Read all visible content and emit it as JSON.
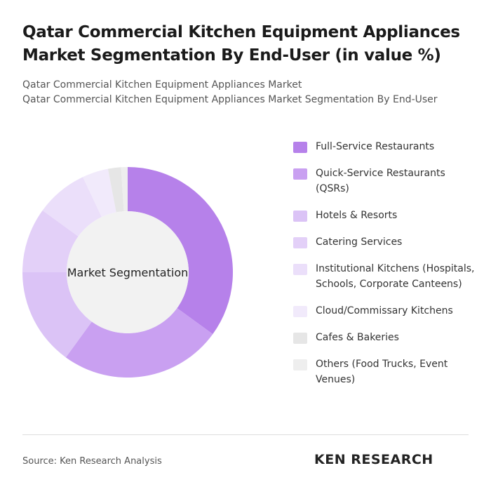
{
  "chart_data": {
    "type": "donut",
    "title": "Qatar Commercial Kitchen Equipment Appliances Market Segmentation By End-User (in value %)",
    "subtitle": [
      "Qatar Commercial Kitchen Equipment Appliances Market",
      "Qatar Commercial Kitchen Equipment Appliances Market Segmentation By End-User"
    ],
    "center_label": "Market Segmentation",
    "categories": [
      "Full-Service Restaurants",
      "Quick-Service Restaurants (QSRs)",
      "Hotels & Resorts",
      "Catering Services",
      "Institutional Kitchens (Hospitals, Schools, Corporate Canteens)",
      "Cloud/Commissary Kitchens",
      "Cafes & Bakeries",
      "Others (Food Trucks, Event Venues)"
    ],
    "values": [
      35,
      25,
      15,
      10,
      8,
      4,
      2,
      1
    ],
    "colors": [
      "#b681ea",
      "#c9a0f1",
      "#dbc3f6",
      "#e3d0f8",
      "#ebdffa",
      "#f1eafb",
      "#e6e6e6",
      "#eeeeee"
    ],
    "source": "Source: Ken Research Analysis",
    "logo": "KEN RESEARCH"
  }
}
